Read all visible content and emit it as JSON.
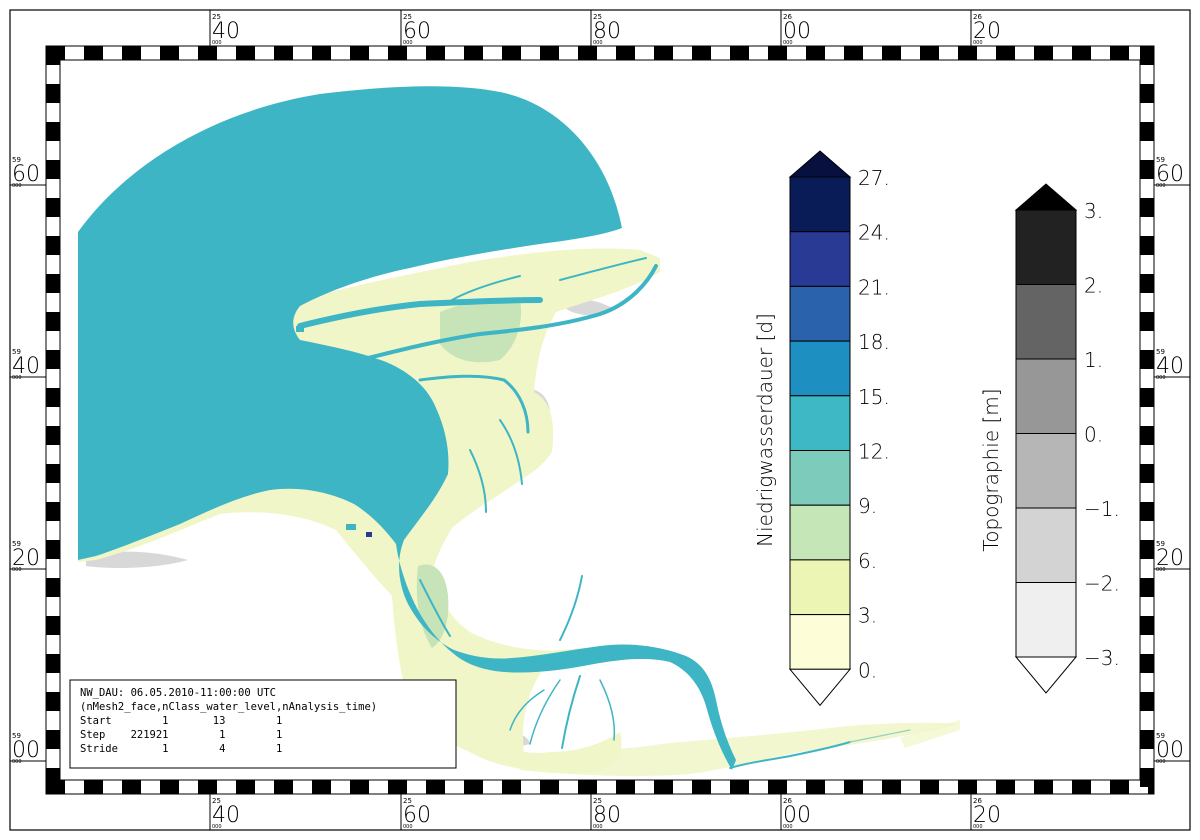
{
  "map": {
    "top_labels": [
      {
        "major": "25",
        "minor": "40",
        "sub": "000"
      },
      {
        "major": "25",
        "minor": "60",
        "sub": "000"
      },
      {
        "major": "25",
        "minor": "80",
        "sub": "000"
      },
      {
        "major": "26",
        "minor": "00",
        "sub": "000"
      },
      {
        "major": "26",
        "minor": "20",
        "sub": "000"
      }
    ],
    "bottom_labels": [
      {
        "major": "25",
        "minor": "40",
        "sub": "000"
      },
      {
        "major": "25",
        "minor": "60",
        "sub": "000"
      },
      {
        "major": "25",
        "minor": "80",
        "sub": "000"
      },
      {
        "major": "26",
        "minor": "00",
        "sub": "000"
      },
      {
        "major": "26",
        "minor": "20",
        "sub": "000"
      }
    ],
    "left_labels": [
      {
        "major": "59",
        "minor": "60",
        "sub": "000"
      },
      {
        "major": "59",
        "minor": "40",
        "sub": "000"
      },
      {
        "major": "59",
        "minor": "20",
        "sub": "000"
      },
      {
        "major": "59",
        "minor": "00",
        "sub": "000"
      }
    ],
    "right_labels": [
      {
        "major": "59",
        "minor": "60",
        "sub": "000"
      },
      {
        "major": "59",
        "minor": "40",
        "sub": "000"
      },
      {
        "major": "59",
        "minor": "20",
        "sub": "000"
      },
      {
        "major": "59",
        "minor": "00",
        "sub": "000"
      }
    ]
  },
  "colorbar_duration": {
    "title": "Niedrigwasserdauer [d]",
    "labels": [
      "27.",
      "24.",
      "21.",
      "18.",
      "15.",
      "12.",
      "9.",
      "6.",
      "3.",
      "0."
    ],
    "colors": [
      "#0a1c58",
      "#293a94",
      "#2a62ab",
      "#1d8fc0",
      "#3eb8c5",
      "#7ccbbb",
      "#c5e6b6",
      "#ecf5b3",
      "#fdfdd8"
    ],
    "over_color": "#081040",
    "under_color": "#ffffff"
  },
  "colorbar_topo": {
    "title": "Topographie [m]",
    "labels": [
      "3.",
      "2.",
      "1.",
      "0.",
      "−1.",
      "−2.",
      "−3."
    ],
    "colors": [
      "#222222",
      "#646464",
      "#979797",
      "#b6b6b6",
      "#d3d3d3",
      "#efefef"
    ],
    "over_color": "#000000",
    "under_color": "#ffffff"
  },
  "info_box": {
    "line1": "NW_DAU: 06.05.2010-11:00:00 UTC",
    "line2": "(nMesh2_face,nClass_water_level,nAnalysis_time)",
    "row_start": "Start        1       13        1",
    "row_step": "Step    221921        1        1",
    "row_stride": "Stride       1        4        1"
  },
  "colors": {
    "water": "#3eb5c4",
    "tidal_flat": "#f1f6c8",
    "shallow": "#c6e4b8",
    "land_grey": "#d8d8d8"
  }
}
